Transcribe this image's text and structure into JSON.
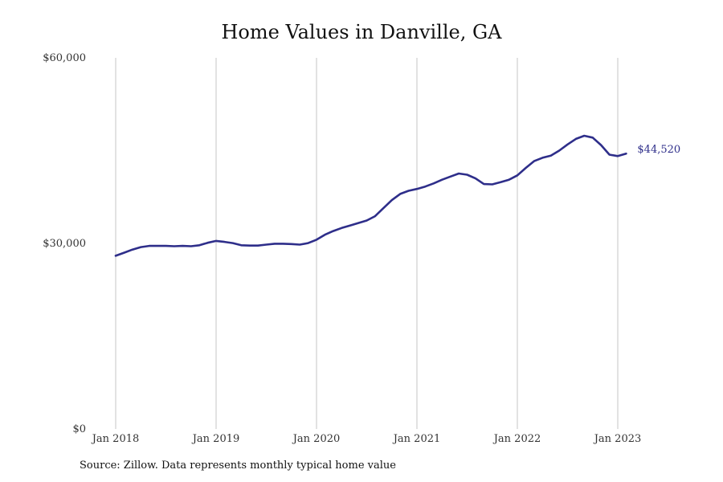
{
  "chart_data": {
    "type": "line",
    "title": "Home Values in Danville, GA",
    "xlabel": "",
    "ylabel": "",
    "x_tick_labels": [
      "Jan 2018",
      "Jan 2019",
      "Jan 2020",
      "Jan 2021",
      "Jan 2022",
      "Jan 2023"
    ],
    "y_tick_labels": [
      "$0",
      "$30,000",
      "$60,000"
    ],
    "y_ticks": [
      0,
      30000,
      60000
    ],
    "ylim": [
      0,
      60000
    ],
    "xlim": [
      "2018-01",
      "2023-12"
    ],
    "grid": "vertical",
    "line_color": "#2e2e8a",
    "series": [
      {
        "x": [
          "2018-01",
          "2018-02",
          "2018-03",
          "2018-04",
          "2018-05",
          "2018-06",
          "2018-07",
          "2018-08",
          "2018-09",
          "2018-10",
          "2018-11",
          "2018-12",
          "2019-01",
          "2019-02",
          "2019-03",
          "2019-04",
          "2019-05",
          "2019-06",
          "2019-07",
          "2019-08",
          "2019-09",
          "2019-10",
          "2019-11",
          "2019-12",
          "2020-01",
          "2020-02",
          "2020-03",
          "2020-04",
          "2020-05",
          "2020-06",
          "2020-07",
          "2020-08",
          "2020-09",
          "2020-10",
          "2020-11",
          "2020-12",
          "2021-01",
          "2021-02",
          "2021-03",
          "2021-04",
          "2021-05",
          "2021-06",
          "2021-07",
          "2021-08",
          "2021-09",
          "2021-10",
          "2021-11",
          "2021-12",
          "2022-01",
          "2022-02",
          "2022-03",
          "2022-04",
          "2022-05",
          "2022-06",
          "2022-07",
          "2022-08",
          "2022-09",
          "2022-10",
          "2022-11",
          "2022-12",
          "2023-01",
          "2023-02"
        ],
        "values": [
          28000,
          28500,
          29000,
          29400,
          29600,
          29600,
          29600,
          29550,
          29600,
          29550,
          29700,
          30100,
          30400,
          30250,
          30050,
          29700,
          29650,
          29650,
          29800,
          29950,
          29950,
          29900,
          29800,
          30050,
          30600,
          31400,
          32000,
          32500,
          32900,
          33300,
          33700,
          34400,
          35700,
          37000,
          38000,
          38500,
          38800,
          39200,
          39700,
          40300,
          40800,
          41300,
          41100,
          40500,
          39600,
          39550,
          39900,
          40300,
          41000,
          42200,
          43300,
          43850,
          44200,
          45000,
          46000,
          46900,
          47400,
          47100,
          45900,
          44350,
          44120,
          44520
        ]
      }
    ],
    "end_label": "$44,520"
  },
  "source": "Source: Zillow. Data represents monthly typical home value"
}
